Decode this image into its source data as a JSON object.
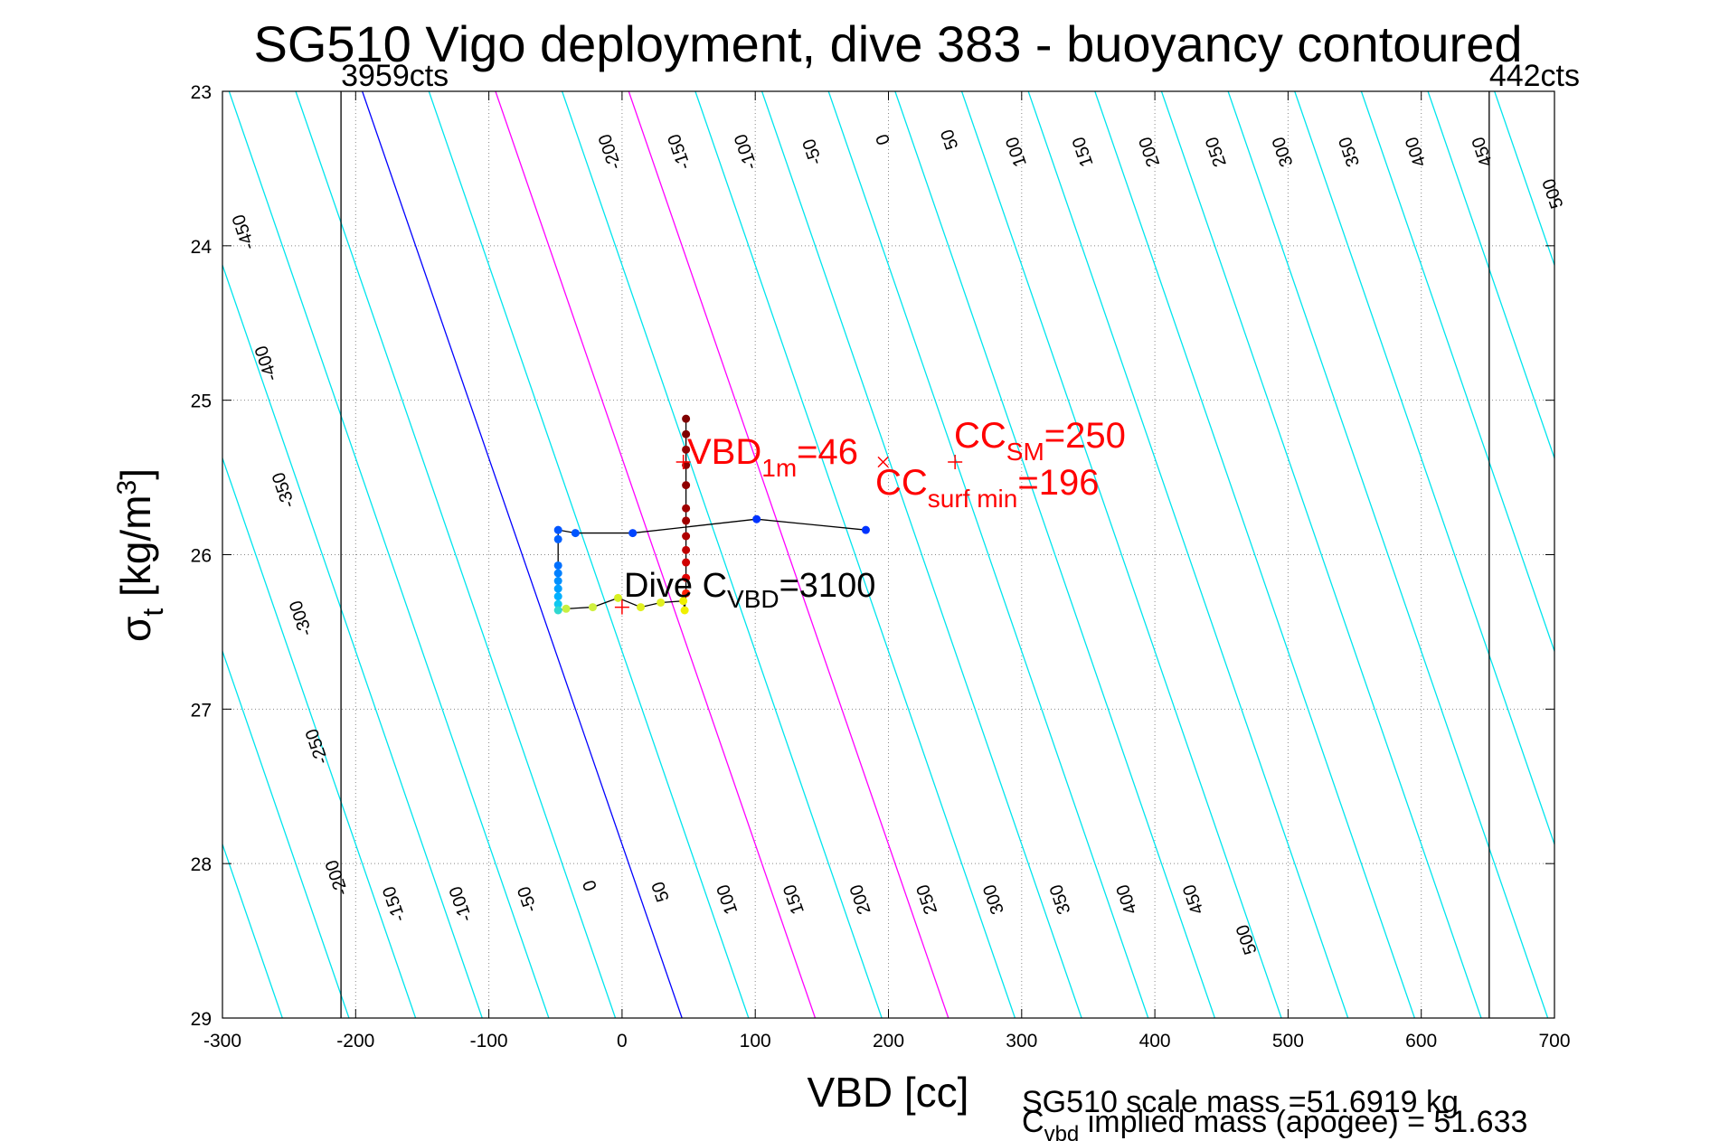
{
  "chart_data": {
    "type": "line",
    "title": "SG510 Vigo deployment, dive 383 - buoyancy contoured",
    "xlabel": "VBD [cc]",
    "ylabel_main": "σ",
    "ylabel_sub": "t",
    "ylabel_rest": " [kg/m",
    "ylabel_sup": "3",
    "ylabel_close": "]",
    "xlim": [
      -300,
      700
    ],
    "ylim": [
      23,
      29
    ],
    "y_reversed": true,
    "grid": "dotted",
    "x_ticks": [
      "-300",
      "-200",
      "-100",
      "0",
      "100",
      "200",
      "300",
      "400",
      "500",
      "600",
      "700"
    ],
    "x_tick_values": [
      -300,
      -200,
      -100,
      0,
      100,
      200,
      300,
      400,
      500,
      600,
      700
    ],
    "y_ticks": [
      "23",
      "24",
      "25",
      "26",
      "27",
      "28",
      "29"
    ],
    "y_tick_values": [
      23,
      24,
      25,
      26,
      27,
      28,
      29
    ],
    "contour_model": {
      "description_units": "contour value vs VBD at sigma: vbd = value - 35 + 40 * (sigma - 27)",
      "levels": [
        -500,
        -450,
        -400,
        -350,
        -300,
        -250,
        -200,
        -150,
        -100,
        -50,
        0,
        50,
        100,
        150,
        200,
        250,
        300,
        350,
        400,
        450,
        500,
        550,
        600,
        650,
        700,
        750,
        800,
        850,
        900,
        950,
        1000,
        1050,
        1100,
        1150,
        1200
      ],
      "highlight": [
        {
          "level": 0,
          "color": "#0000ff"
        },
        {
          "level": 100,
          "color": "#ff00ff"
        },
        {
          "level": 200,
          "color": "#ff00ff"
        }
      ],
      "default_color": "#00e5ee"
    },
    "contour_labels_top": [
      {
        "text": "-450",
        "x": -280,
        "y": 23.9
      },
      {
        "text": "-400",
        "x": -263,
        "y": 24.75
      },
      {
        "text": "-350",
        "x": -250,
        "y": 25.57
      },
      {
        "text": "-300",
        "x": -237,
        "y": 26.4
      },
      {
        "text": "-250",
        "x": -225,
        "y": 27.23
      },
      {
        "text": "-200",
        "x": -210,
        "y": 28.08
      },
      {
        "text": "-200",
        "x": -5,
        "y": 23.38
      },
      {
        "text": "-150",
        "x": 47,
        "y": 23.38
      },
      {
        "text": "-100",
        "x": 97,
        "y": 23.38
      },
      {
        "text": "-50",
        "x": 147,
        "y": 23.38
      },
      {
        "text": "0",
        "x": 200,
        "y": 23.3
      },
      {
        "text": "50",
        "x": 250,
        "y": 23.3
      },
      {
        "text": "100",
        "x": 300,
        "y": 23.38
      },
      {
        "text": "150",
        "x": 350,
        "y": 23.38
      },
      {
        "text": "200",
        "x": 400,
        "y": 23.38
      },
      {
        "text": "250",
        "x": 450,
        "y": 23.38
      },
      {
        "text": "300",
        "x": 500,
        "y": 23.38
      },
      {
        "text": "350",
        "x": 550,
        "y": 23.38
      },
      {
        "text": "400",
        "x": 600,
        "y": 23.38
      },
      {
        "text": "450",
        "x": 650,
        "y": 23.38
      },
      {
        "text": "500",
        "x": 703,
        "y": 23.65
      }
    ],
    "contour_labels_bottom": [
      {
        "text": "-150",
        "x": -167,
        "y": 28.25
      },
      {
        "text": "-100",
        "x": -117,
        "y": 28.25
      },
      {
        "text": "-50",
        "x": -67,
        "y": 28.22
      },
      {
        "text": "0",
        "x": -20,
        "y": 28.13
      },
      {
        "text": "50",
        "x": 33,
        "y": 28.17
      },
      {
        "text": "100",
        "x": 83,
        "y": 28.22
      },
      {
        "text": "150",
        "x": 133,
        "y": 28.22
      },
      {
        "text": "200",
        "x": 183,
        "y": 28.22
      },
      {
        "text": "250",
        "x": 233,
        "y": 28.22
      },
      {
        "text": "300",
        "x": 283,
        "y": 28.22
      },
      {
        "text": "350",
        "x": 333,
        "y": 28.22
      },
      {
        "text": "400",
        "x": 383,
        "y": 28.22
      },
      {
        "text": "450",
        "x": 433,
        "y": 28.22
      },
      {
        "text": "500",
        "x": 473,
        "y": 28.48
      }
    ],
    "vertical_lines": [
      {
        "x": -211,
        "label": "3959cts"
      },
      {
        "x": 651,
        "label": "442cts"
      }
    ],
    "series": [
      {
        "name": "descent",
        "color": "#000000",
        "points": [
          {
            "x": 183,
            "y": 25.84,
            "c": "#0033ff"
          },
          {
            "x": 101,
            "y": 25.77,
            "c": "#0033ff"
          },
          {
            "x": 8,
            "y": 25.86,
            "c": "#0044ff"
          },
          {
            "x": -35,
            "y": 25.86,
            "c": "#0055ff"
          },
          {
            "x": -48,
            "y": 25.84,
            "c": "#0055ff"
          },
          {
            "x": -48,
            "y": 25.9,
            "c": "#0060ff"
          },
          {
            "x": -48,
            "y": 26.07,
            "c": "#0070ff"
          },
          {
            "x": -48,
            "y": 26.12,
            "c": "#0080ff"
          },
          {
            "x": -48,
            "y": 26.17,
            "c": "#0090ff"
          },
          {
            "x": -48,
            "y": 26.22,
            "c": "#00a0ff"
          },
          {
            "x": -48,
            "y": 26.27,
            "c": "#00b0ff"
          },
          {
            "x": -48,
            "y": 26.32,
            "c": "#10c8f0"
          },
          {
            "x": -48,
            "y": 26.36,
            "c": "#30d8d0"
          }
        ]
      },
      {
        "name": "bottom",
        "color": "#000000",
        "points": [
          {
            "x": -42,
            "y": 26.35,
            "c": "#c8f040"
          },
          {
            "x": -22,
            "y": 26.34,
            "c": "#d0f040"
          },
          {
            "x": -3,
            "y": 26.28,
            "c": "#d8f020"
          },
          {
            "x": 14,
            "y": 26.34,
            "c": "#e0f020"
          },
          {
            "x": 29,
            "y": 26.31,
            "c": "#e0f020"
          },
          {
            "x": 46,
            "y": 26.3,
            "c": "#f0f000"
          },
          {
            "x": 47,
            "y": 26.36,
            "c": "#f0f000"
          }
        ]
      },
      {
        "name": "ascent",
        "color": "#000000",
        "points": [
          {
            "x": 48,
            "y": 26.25,
            "c": "#ff2000"
          },
          {
            "x": 48,
            "y": 26.15,
            "c": "#e00000"
          },
          {
            "x": 48,
            "y": 26.05,
            "c": "#d00000"
          },
          {
            "x": 48,
            "y": 25.97,
            "c": "#c00000"
          },
          {
            "x": 48,
            "y": 25.88,
            "c": "#b00000"
          },
          {
            "x": 48,
            "y": 25.78,
            "c": "#a00000"
          },
          {
            "x": 48,
            "y": 25.7,
            "c": "#a00000"
          },
          {
            "x": 48,
            "y": 25.55,
            "c": "#900000"
          },
          {
            "x": 48,
            "y": 25.42,
            "c": "#900000"
          },
          {
            "x": 48,
            "y": 25.32,
            "c": "#900000"
          },
          {
            "x": 48,
            "y": 25.22,
            "c": "#800000"
          },
          {
            "x": 48,
            "y": 25.12,
            "c": "#800000"
          }
        ]
      }
    ],
    "markers": [
      {
        "name": "vbd-1m-marker",
        "type": "plus",
        "x": 46,
        "y": 25.4,
        "color": "#ff0000"
      },
      {
        "name": "cc-surf-min-marker",
        "type": "x",
        "x": 196,
        "y": 25.4,
        "color": "#ff0000"
      },
      {
        "name": "cc-sm-marker",
        "type": "plus",
        "x": 250,
        "y": 25.4,
        "color": "#ff0000"
      },
      {
        "name": "dive-cvbd-marker",
        "type": "plus",
        "x": 0,
        "y": 26.34,
        "color": "#ff0000"
      }
    ],
    "annotations": {
      "vbd_1m": {
        "main": "VBD",
        "sub": "1m",
        "rest": "=46"
      },
      "cc_sm": {
        "main": "CC",
        "sub": "SM",
        "rest": "=250"
      },
      "cc_surf_min": {
        "main": "CC",
        "sub": "surf min",
        "rest": "=196"
      },
      "dive_cvbd": {
        "main": "Dive C",
        "sub": "VBD",
        "rest": "=3100"
      }
    },
    "footer": {
      "line1": "SG510 scale mass =51.6919 kg",
      "line2_main": "C",
      "line2_sub": "vbd",
      "line2_rest": " implied mass (apogee) = 51.633"
    }
  }
}
